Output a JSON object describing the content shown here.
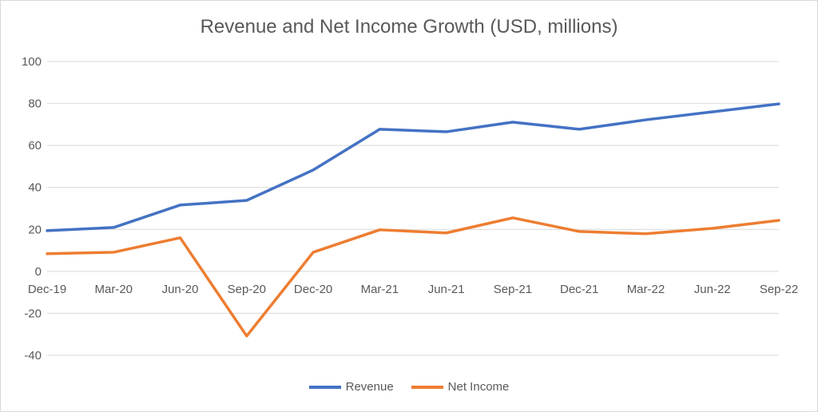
{
  "chart_data": {
    "type": "line",
    "title": "Revenue and Net Income Growth (USD, millions)",
    "xlabel": "",
    "ylabel": "",
    "categories": [
      "Dec-19",
      "Mar-20",
      "Jun-20",
      "Sep-20",
      "Dec-20",
      "Mar-21",
      "Jun-21",
      "Sep-21",
      "Dec-21",
      "Mar-22",
      "Jun-22",
      "Sep-22"
    ],
    "ylim": [
      -40,
      100
    ],
    "yticks": [
      100,
      80,
      60,
      40,
      20,
      0,
      -20,
      -40
    ],
    "grid": true,
    "legend_position": "bottom",
    "series": [
      {
        "name": "Revenue",
        "color": "#4472C4",
        "values": [
          19.4,
          20.9,
          31.6,
          33.8,
          48.3,
          67.7,
          66.5,
          71.1,
          67.7,
          72.2,
          76.0,
          79.8
        ]
      },
      {
        "name": "Net Income",
        "color": "#ED7D31",
        "values": [
          8.4,
          9.1,
          16.0,
          -30.8,
          9.1,
          19.8,
          18.3,
          25.5,
          19.0,
          17.9,
          20.5,
          24.3
        ]
      }
    ]
  }
}
